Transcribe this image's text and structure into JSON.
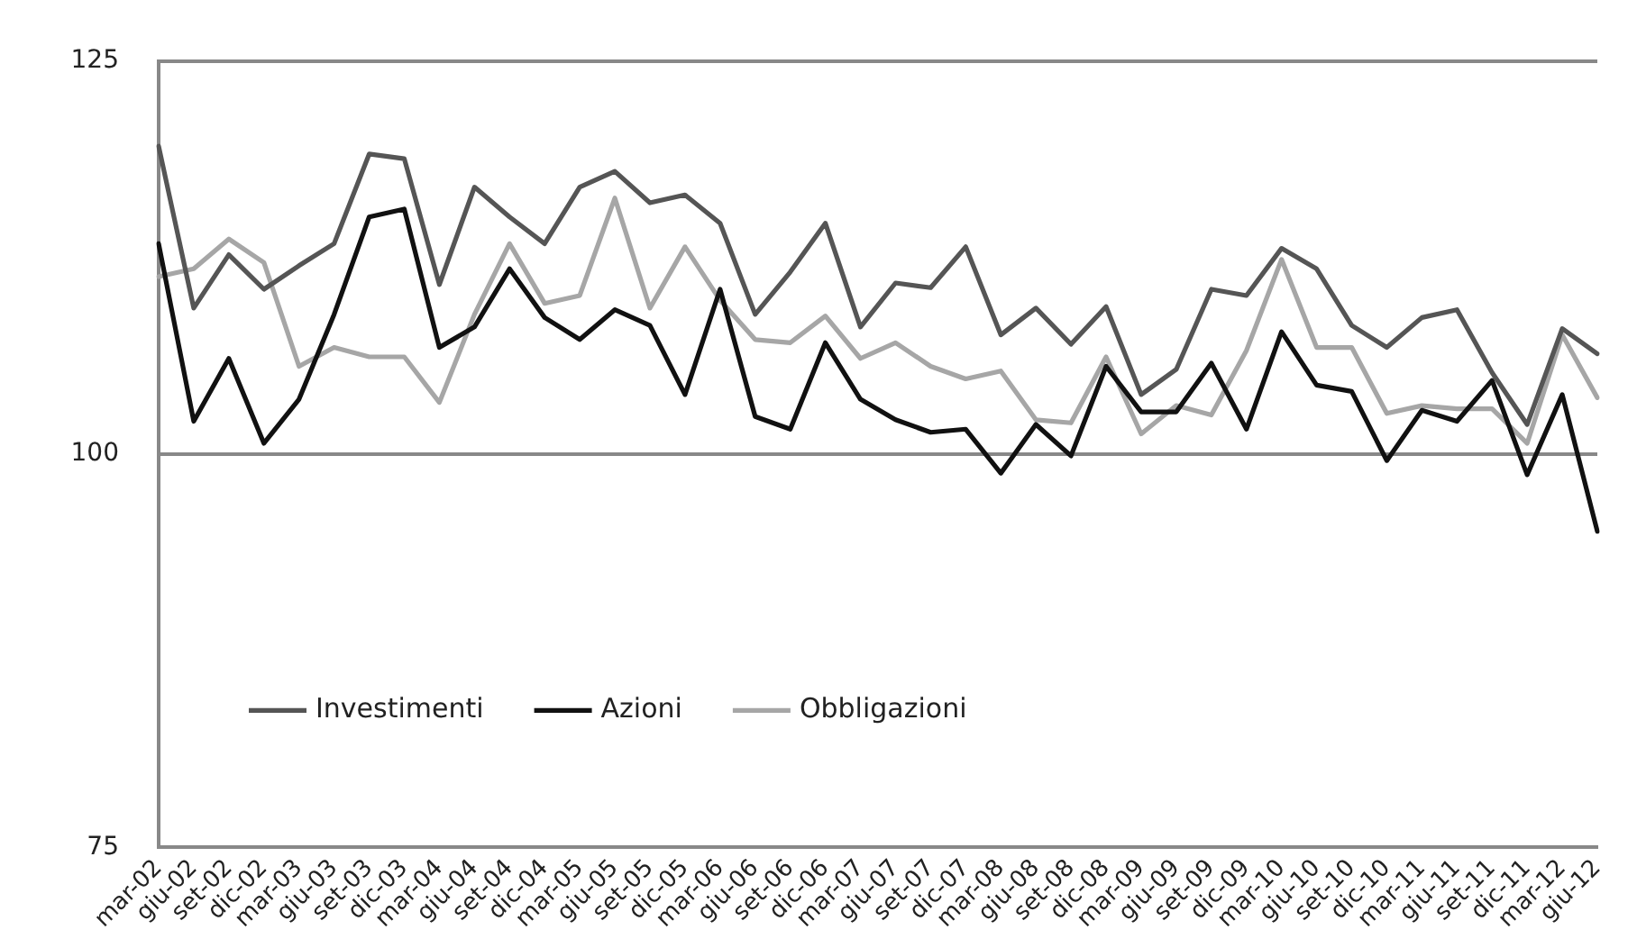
{
  "chart_data": {
    "type": "line",
    "categories": [
      "mar-02",
      "giu-02",
      "set-02",
      "dic-02",
      "mar-03",
      "giu-03",
      "set-03",
      "dic-03",
      "mar-04",
      "giu-04",
      "set-04",
      "dic-04",
      "mar-05",
      "giu-05",
      "set-05",
      "dic-05",
      "mar-06",
      "giu-06",
      "set-06",
      "dic-06",
      "mar-07",
      "giu-07",
      "set-07",
      "dic-07",
      "mar-08",
      "giu-08",
      "set-08",
      "dic-08",
      "mar-09",
      "giu-09",
      "set-09",
      "dic-09",
      "mar-10",
      "giu-10",
      "set-10",
      "dic-10",
      "mar-11",
      "giu-11",
      "set-11",
      "dic-11",
      "mar-12",
      "giu-12"
    ],
    "series": [
      {
        "name": "Investimenti",
        "color": "#555555",
        "values": [
          119.6,
          109.3,
          112.7,
          110.5,
          112.0,
          113.4,
          119.1,
          118.8,
          110.8,
          117.0,
          115.1,
          113.4,
          117.0,
          118.0,
          116.0,
          116.5,
          114.7,
          108.9,
          111.6,
          114.7,
          108.1,
          110.9,
          110.6,
          113.2,
          107.6,
          109.3,
          107.0,
          109.4,
          103.8,
          105.4,
          110.5,
          110.1,
          113.1,
          111.8,
          108.2,
          106.8,
          108.7,
          109.2,
          105.2,
          101.9,
          108.0,
          106.4
        ]
      },
      {
        "name": "Azioni",
        "color": "#111111",
        "values": [
          113.4,
          102.1,
          106.1,
          100.7,
          103.5,
          108.9,
          115.1,
          115.6,
          106.8,
          108.1,
          111.8,
          108.7,
          107.3,
          109.2,
          108.2,
          103.8,
          110.5,
          102.4,
          101.6,
          107.1,
          103.5,
          102.2,
          101.4,
          101.6,
          98.8,
          101.9,
          99.9,
          105.6,
          102.7,
          102.7,
          105.8,
          101.6,
          107.8,
          104.4,
          104.0,
          99.6,
          102.8,
          102.1,
          104.7,
          98.7,
          103.8,
          95.1
        ]
      },
      {
        "name": "Obbligazioni",
        "color": "#a6a6a6",
        "values": [
          111.3,
          111.8,
          113.7,
          112.2,
          105.6,
          106.8,
          106.2,
          106.2,
          103.3,
          108.9,
          113.4,
          109.6,
          110.1,
          116.3,
          109.3,
          113.2,
          109.8,
          107.3,
          107.1,
          108.8,
          106.1,
          107.1,
          105.6,
          104.8,
          105.3,
          102.2,
          102.0,
          106.2,
          101.3,
          103.1,
          102.5,
          106.6,
          112.4,
          106.8,
          106.8,
          102.6,
          103.1,
          102.9,
          102.9,
          100.7,
          107.6,
          103.6
        ]
      }
    ],
    "ylim": [
      75,
      125
    ],
    "yticks": [
      75,
      100,
      125
    ],
    "grid": "y",
    "legend": "bottom left",
    "marker": "none",
    "line_style": "solid"
  }
}
